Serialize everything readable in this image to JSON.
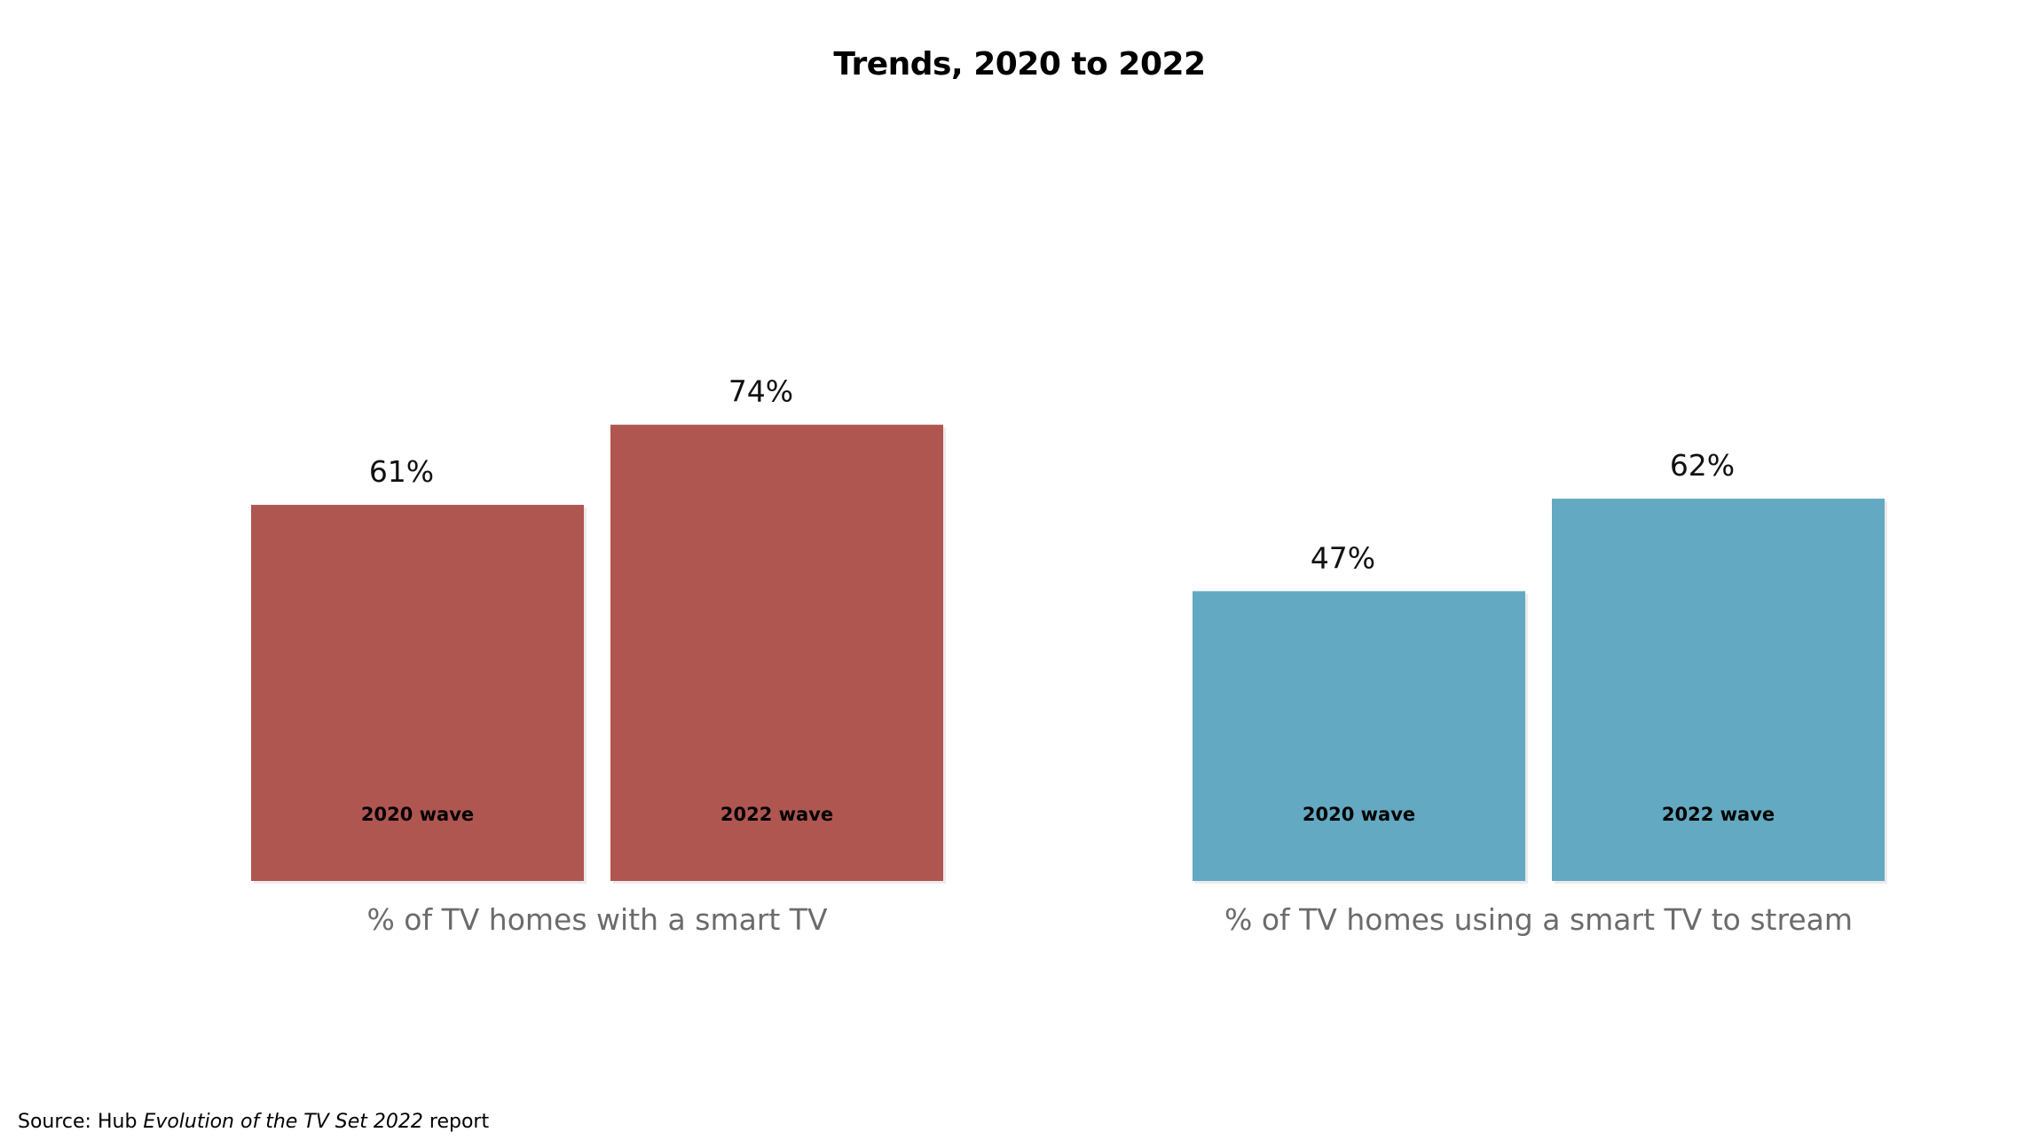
{
  "chart_data": {
    "type": "bar",
    "title": "Trends, 2020 to 2022",
    "xlabel": "",
    "ylabel": "",
    "ylim": [
      0,
      100
    ],
    "grid": false,
    "groups": [
      {
        "name": "% of TV homes with a smart TV",
        "color": "#b05651",
        "bars": [
          {
            "label": "2020 wave",
            "value": 61,
            "value_label": "61%"
          },
          {
            "label": "2022 wave",
            "value": 74,
            "value_label": "74%"
          }
        ]
      },
      {
        "name": "% of TV homes using a smart TV to stream",
        "color": "#63a9c2",
        "bars": [
          {
            "label": "2020 wave",
            "value": 47,
            "value_label": "47%"
          },
          {
            "label": "2022 wave",
            "value": 62,
            "value_label": "62%"
          }
        ]
      }
    ]
  },
  "source": {
    "prefix": "Source: Hub ",
    "italic": "Evolution of the TV Set 2022",
    "suffix": " report"
  }
}
